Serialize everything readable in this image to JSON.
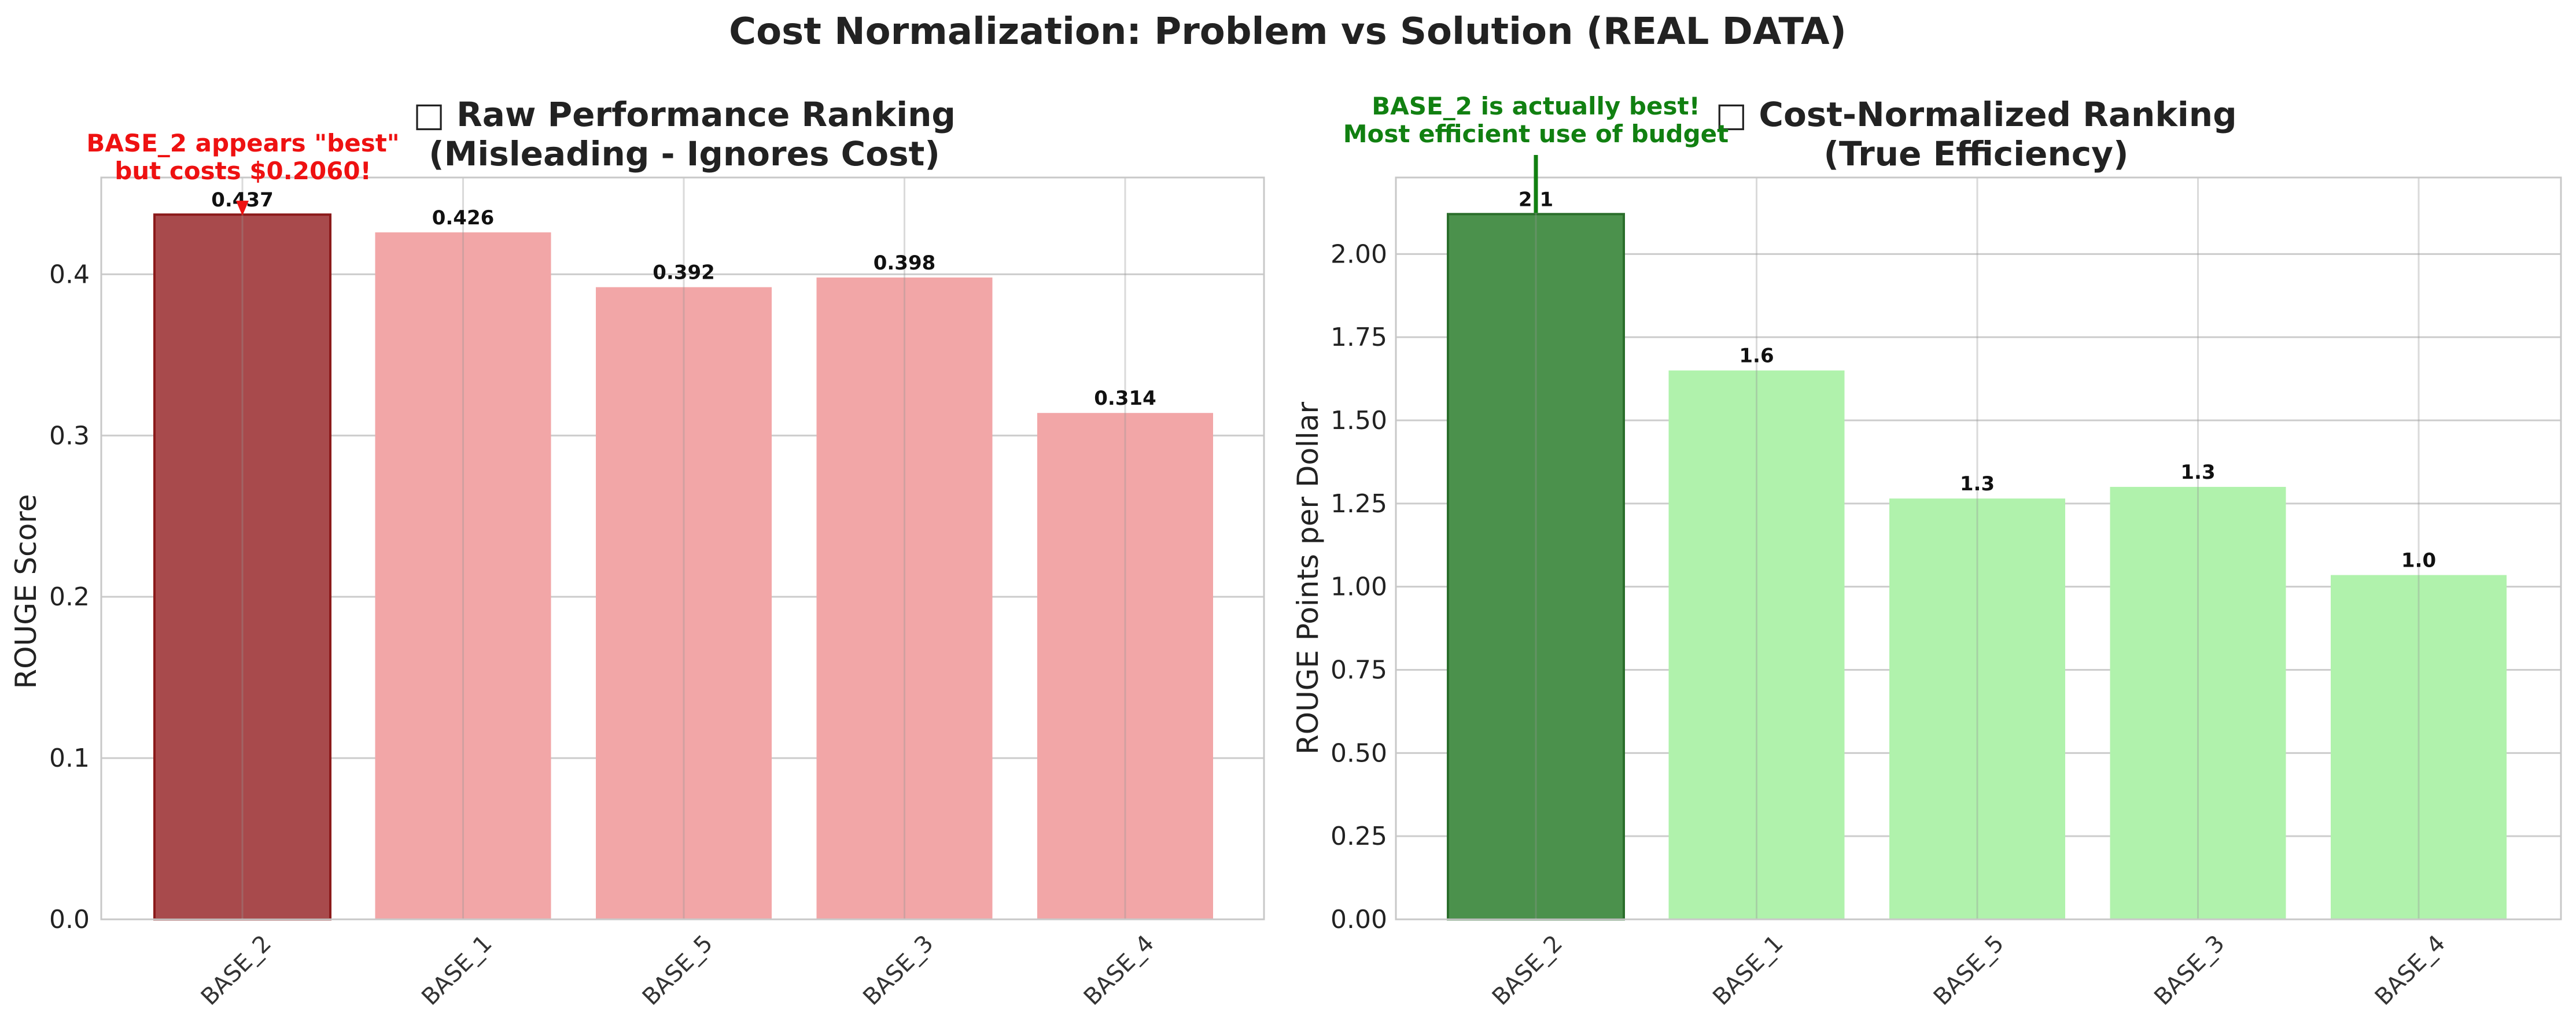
{
  "figure": {
    "title": "Cost Normalization: Problem vs Solution (REAL DATA)"
  },
  "chart_data": [
    {
      "type": "bar",
      "title_line1": "□ Raw Performance Ranking",
      "title_line2": "(Misleading - Ignores Cost)",
      "xlabel": "",
      "ylabel": "ROUGE Score",
      "categories": [
        "BASE_2",
        "BASE_1",
        "BASE_5",
        "BASE_3",
        "BASE_4"
      ],
      "values": [
        0.437,
        0.426,
        0.392,
        0.398,
        0.314
      ],
      "value_labels": [
        "0.437",
        "0.426",
        "0.392",
        "0.398",
        "0.314"
      ],
      "ylim": [
        0,
        0.46
      ],
      "yticks": [
        0.0,
        0.1,
        0.2,
        0.3,
        0.4
      ],
      "ytick_labels": [
        "0.0",
        "0.1",
        "0.2",
        "0.3",
        "0.4"
      ],
      "grid": true,
      "highlight_index": 0,
      "colors": {
        "highlight": "#a84a4c",
        "highlight_edge": "#8b1a1a",
        "bar": "#f2a6a7"
      },
      "annotation": {
        "line1": "BASE_2 appears \"best\"",
        "line2": "but costs $0.2060!",
        "color": "#ee1111"
      }
    },
    {
      "type": "bar",
      "title_line1": "□ Cost-Normalized Ranking",
      "title_line2": "(True Efficiency)",
      "xlabel": "",
      "ylabel": "ROUGE Points per Dollar",
      "categories": [
        "BASE_2",
        "BASE_1",
        "BASE_5",
        "BASE_3",
        "BASE_4"
      ],
      "values": [
        2.12,
        1.65,
        1.265,
        1.3,
        1.035
      ],
      "value_labels": [
        "2.1",
        "1.6",
        "1.3",
        "1.3",
        "1.0"
      ],
      "ylim": [
        0,
        2.23
      ],
      "yticks": [
        0.0,
        0.25,
        0.5,
        0.75,
        1.0,
        1.25,
        1.5,
        1.75,
        2.0
      ],
      "ytick_labels": [
        "0.00",
        "0.25",
        "0.50",
        "0.75",
        "1.00",
        "1.25",
        "1.50",
        "1.75",
        "2.00"
      ],
      "grid": true,
      "highlight_index": 0,
      "colors": {
        "highlight": "#4b914c",
        "highlight_edge": "#2a6e2b",
        "bar": "#b0f2ac"
      },
      "annotation": {
        "line1": "BASE_2 is actually best!",
        "line2": "Most efficient use of budget",
        "color": "#118011"
      }
    }
  ]
}
